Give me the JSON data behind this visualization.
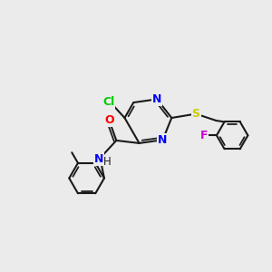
{
  "background_color": "#ebebeb",
  "bond_color": "#1a1a1a",
  "atom_colors": {
    "N": "#0000ff",
    "O": "#ff0000",
    "S": "#cccc00",
    "Cl": "#00cc00",
    "F": "#cc00cc",
    "C": "#1a1a1a",
    "H": "#1a1a1a"
  },
  "figsize": [
    3.0,
    3.0
  ],
  "dpi": 100
}
